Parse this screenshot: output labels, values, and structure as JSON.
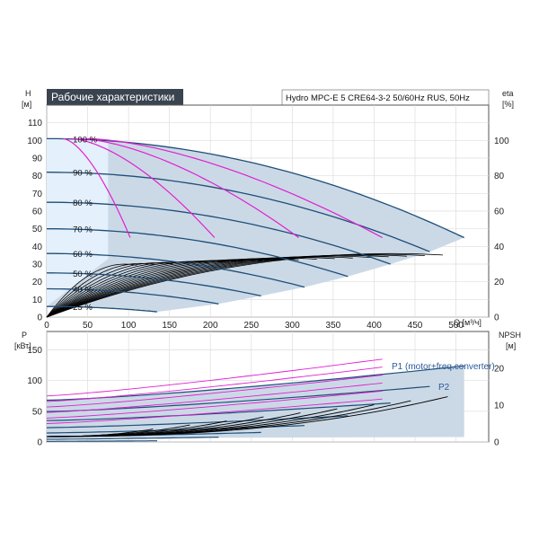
{
  "title": "Рабочие характеристики",
  "subtitle": "Hydro MPC-E 5 CRE64-3-2 50/60Hz RUS, 50Hz",
  "colors": {
    "envelope": "#cbd9e6",
    "envelope_light": "#e4f0fb",
    "speed_curve": "#1f4e79",
    "system_curve": "#e020d0",
    "eff_curve": "#000000",
    "axis": "#444444",
    "title_bg": "#3a4450"
  },
  "chart_data": [
    {
      "type": "line",
      "name": "head",
      "xlabel": "Q [м³/ч]",
      "ylabel": "H",
      "yunit": "[м]",
      "y2label": "eta",
      "y2unit": "[%]",
      "xlim": [
        0,
        540
      ],
      "ylim": [
        0,
        120
      ],
      "y2lim": [
        0,
        120
      ],
      "xticks": [
        0,
        50,
        100,
        150,
        200,
        250,
        300,
        350,
        400,
        450,
        500
      ],
      "yticks": [
        0,
        10,
        20,
        30,
        40,
        50,
        60,
        70,
        80,
        90,
        100,
        110
      ],
      "y2ticks": [
        0,
        20,
        40,
        60,
        80,
        100
      ],
      "speed_labels": [
        {
          "text": "100 %",
          "y": 101
        },
        {
          "text": "90 %",
          "y": 82
        },
        {
          "text": "80 %",
          "y": 65
        },
        {
          "text": "70 %",
          "y": 50
        },
        {
          "text": "60 %",
          "y": 36
        },
        {
          "text": "50 %",
          "y": 25
        },
        {
          "text": "40 %",
          "y": 16
        },
        {
          "text": "25 %",
          "y": 6
        }
      ],
      "speed_curves": [
        {
          "pct": 100,
          "H0": 101,
          "Qmax": 510,
          "Hend": 45
        },
        {
          "pct": 90,
          "H0": 82,
          "Qmax": 468,
          "Hend": 37
        },
        {
          "pct": 80,
          "H0": 65,
          "Qmax": 420,
          "Hend": 30
        },
        {
          "pct": 70,
          "H0": 50,
          "Qmax": 368,
          "Hend": 23
        },
        {
          "pct": 60,
          "H0": 36,
          "Qmax": 315,
          "Hend": 17
        },
        {
          "pct": 50,
          "H0": 25,
          "Qmax": 262,
          "Hend": 12
        },
        {
          "pct": 40,
          "H0": 16,
          "Qmax": 210,
          "Hend": 7.5
        },
        {
          "pct": 25,
          "H0": 6,
          "Qmax": 135,
          "Hend": 3
        }
      ],
      "system_curves_end": [
        {
          "Q": 102,
          "H": 45
        },
        {
          "Q": 205,
          "H": 45
        },
        {
          "Q": 308,
          "H": 45
        },
        {
          "Q": 410,
          "H": 45
        }
      ],
      "efficiency_peak_eta": 76
    },
    {
      "type": "line",
      "name": "power",
      "ylabel": "P",
      "yunit": "[кВт]",
      "y2label": "NPSH",
      "y2unit": "[м]",
      "xlim": [
        0,
        540
      ],
      "ylim": [
        0,
        180
      ],
      "y2lim": [
        0,
        30
      ],
      "yticks": [
        0,
        50,
        100,
        150
      ],
      "y2ticks": [
        0,
        10,
        20
      ],
      "series": [
        {
          "name": "P1 (motor+freq.converter)",
          "P0": 68,
          "Pend": 124,
          "Qend": 510
        },
        {
          "name": "P2",
          "P0": 60,
          "Pend": 110,
          "Qend": 490
        }
      ]
    }
  ]
}
